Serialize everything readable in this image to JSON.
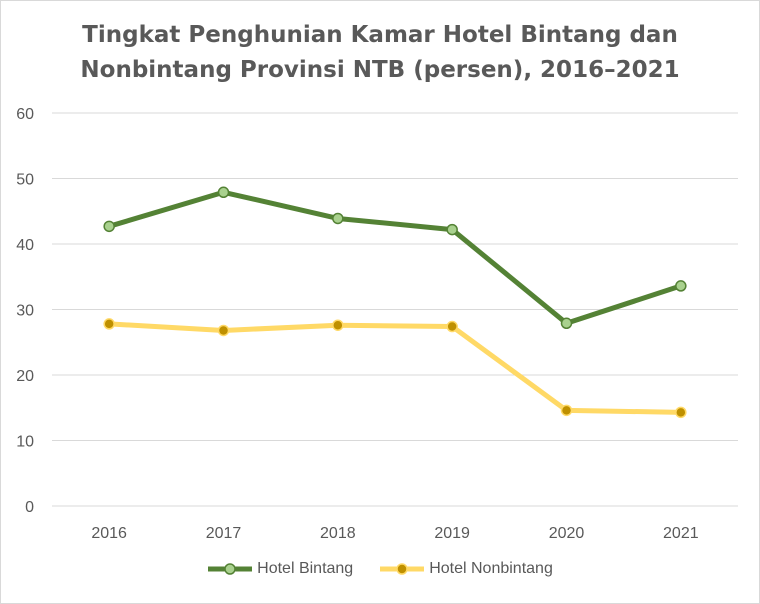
{
  "chart_data": {
    "type": "line",
    "title_line1": "Tingkat Penghunian Kamar Hotel Bintang dan",
    "title_line2": "Nonbintang Provinsi NTB (persen), 2016–2021",
    "categories": [
      "2016",
      "2017",
      "2018",
      "2019",
      "2020",
      "2021"
    ],
    "series": [
      {
        "name": "Hotel Bintang",
        "values": [
          42.7,
          47.9,
          43.9,
          42.2,
          27.9,
          33.6
        ],
        "color": "#548235",
        "marker_fill": "#a9d18e"
      },
      {
        "name": "Hotel Nonbintang",
        "values": [
          27.8,
          26.8,
          27.6,
          27.4,
          14.6,
          14.3
        ],
        "color": "#ffd966",
        "marker_fill": "#bf9000"
      }
    ],
    "yticks": [
      "0",
      "10",
      "20",
      "30",
      "40",
      "50",
      "60"
    ],
    "ylim": [
      0,
      60
    ],
    "grid": true,
    "legend_position": "bottom"
  }
}
